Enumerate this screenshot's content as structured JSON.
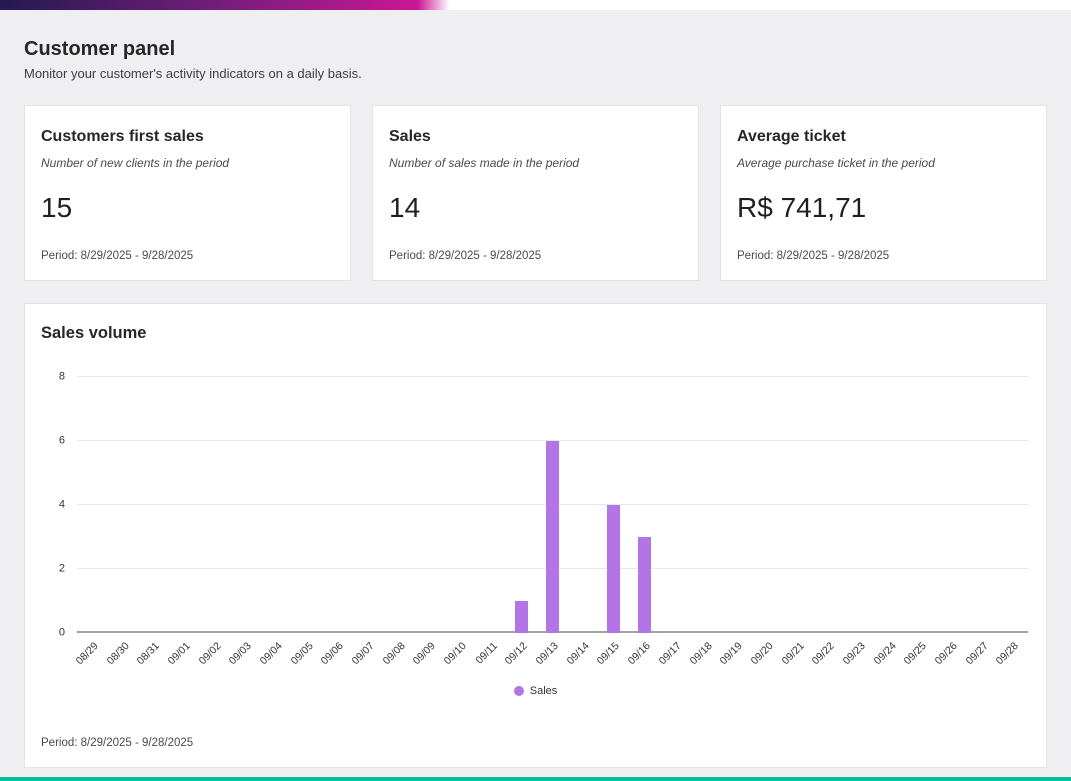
{
  "page": {
    "title": "Customer panel",
    "subtitle": "Monitor your customer's activity indicators on a daily basis."
  },
  "theme": {
    "top_gradient_from": "#241a4e",
    "top_gradient_to": "#cb1695",
    "bottom_bar_color": "#00bfa0",
    "bar_color": "#b475e4",
    "page_background": "#efeff1"
  },
  "cards": [
    {
      "title": "Customers first sales",
      "description": "Number of new clients in the period",
      "value": "15",
      "period": "Period: 8/29/2025 - 9/28/2025"
    },
    {
      "title": "Sales",
      "description": "Number of sales made in the period",
      "value": "14",
      "period": "Period: 8/29/2025 - 9/28/2025"
    },
    {
      "title": "Average ticket",
      "description": "Average purchase ticket in the period",
      "value": "R$ 741,71",
      "period": "Period: 8/29/2025 - 9/28/2025"
    }
  ],
  "chart_card": {
    "title": "Sales volume",
    "period": "Period: 8/29/2025 - 9/28/2025",
    "legend": [
      {
        "label": "Sales",
        "color": "#b475e4"
      }
    ]
  },
  "chart_data": {
    "type": "bar",
    "title": "Sales volume",
    "categories": [
      "08/29",
      "08/30",
      "08/31",
      "09/01",
      "09/02",
      "09/03",
      "09/04",
      "09/05",
      "09/06",
      "09/07",
      "09/08",
      "09/09",
      "09/10",
      "09/11",
      "09/12",
      "09/13",
      "09/14",
      "09/15",
      "09/16",
      "09/17",
      "09/18",
      "09/19",
      "09/20",
      "09/21",
      "09/22",
      "09/23",
      "09/24",
      "09/25",
      "09/26",
      "09/27",
      "09/28"
    ],
    "series": [
      {
        "name": "Sales",
        "color": "#b475e4",
        "values": [
          0,
          0,
          0,
          0,
          0,
          0,
          0,
          0,
          0,
          0,
          0,
          0,
          0,
          0,
          1,
          6,
          0,
          4,
          3,
          0,
          0,
          0,
          0,
          0,
          0,
          0,
          0,
          0,
          0,
          0,
          0
        ]
      }
    ],
    "xlabel": "",
    "ylabel": "",
    "ylim": [
      0,
      8
    ],
    "yticks": [
      0,
      2,
      4,
      6,
      8
    ],
    "grid": true,
    "legend_position": "bottom"
  }
}
